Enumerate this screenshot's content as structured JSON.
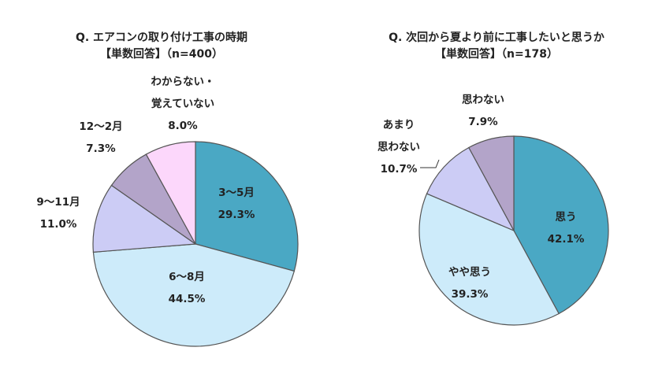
{
  "chart_data": [
    {
      "type": "pie",
      "title": "Q. エアコンの取り付け工事の時期",
      "subtitle": "【単数回答】（n=400）",
      "start_angle_deg": 0,
      "direction": "clockwise",
      "slices": [
        {
          "label": "3～5月",
          "value": 29.3,
          "display": "29.3%",
          "color": "#4aa8c4"
        },
        {
          "label": "6～8月",
          "value": 44.5,
          "display": "44.5%",
          "color": "#cdebfa"
        },
        {
          "label": "9～11月",
          "value": 11.0,
          "display": "11.0%",
          "color": "#ccccf5"
        },
        {
          "label": "12～2月",
          "value": 7.3,
          "display": "7.3%",
          "color": "#b3a4c9"
        },
        {
          "label": "わからない・\n覚えていない",
          "value": 8.0,
          "display": "8.0%",
          "color": "#fcd7fb"
        }
      ]
    },
    {
      "type": "pie",
      "title": "Q. 次回から夏より前に工事したいと思うか",
      "subtitle": "【単数回答】（n=178）",
      "start_angle_deg": 0,
      "direction": "clockwise",
      "slices": [
        {
          "label": "思う",
          "value": 42.1,
          "display": "42.1%",
          "color": "#4aa8c4"
        },
        {
          "label": "やや思う",
          "value": 39.3,
          "display": "39.3%",
          "color": "#cdebfa"
        },
        {
          "label": "あまり\n思わない",
          "value": 10.7,
          "display": "10.7%",
          "color": "#ccccf5"
        },
        {
          "label": "思わない",
          "value": 7.9,
          "display": "7.9%",
          "color": "#b3a4c9"
        }
      ]
    }
  ]
}
